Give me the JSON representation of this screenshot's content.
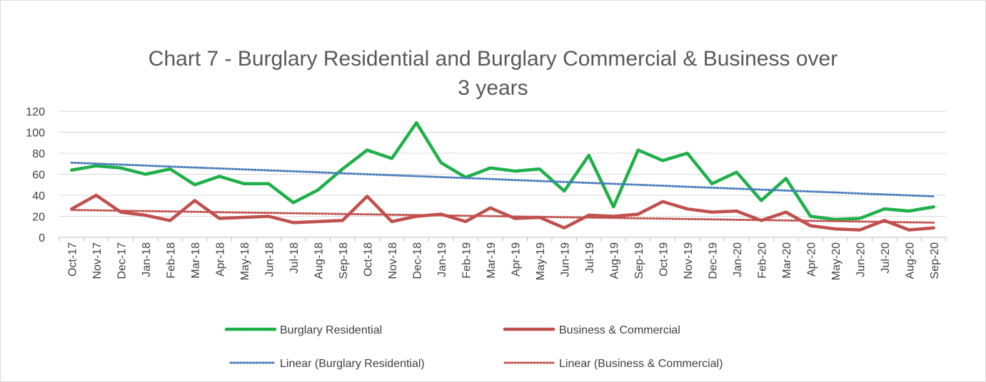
{
  "chart_data": {
    "type": "line",
    "title": "Chart 7 - Burglary Residential and Burglary Commercial & Business over\n3 years",
    "categories": [
      "Oct-17",
      "Nov-17",
      "Dec-17",
      "Jan-18",
      "Feb-18",
      "Mar-18",
      "Apr-18",
      "May-18",
      "Jun-18",
      "Jul-18",
      "Aug-18",
      "Sep-18",
      "Oct-18",
      "Nov-18",
      "Dec-18",
      "Jan-19",
      "Feb-19",
      "Mar-19",
      "Apr-19",
      "May-19",
      "Jun-19",
      "Jul-19",
      "Aug-19",
      "Sep-19",
      "Oct-19",
      "Nov-19",
      "Dec-19",
      "Jan-20",
      "Feb-20",
      "Mar-20",
      "Apr-20",
      "May-20",
      "Jun-20",
      "Jul-20",
      "Aug-20",
      "Sep-20"
    ],
    "series": [
      {
        "name": "Burglary Residential",
        "color": "#1fb04a",
        "style": "solid",
        "values": [
          64,
          68,
          66,
          60,
          65,
          50,
          58,
          51,
          51,
          33,
          45,
          65,
          83,
          75,
          109,
          71,
          57,
          66,
          63,
          65,
          44,
          78,
          29,
          83,
          73,
          80,
          51,
          62,
          35,
          56,
          20,
          17,
          18,
          27,
          25,
          29
        ]
      },
      {
        "name": "Business & Commercial",
        "color": "#c0504d",
        "style": "solid",
        "values": [
          27,
          40,
          24,
          21,
          16,
          35,
          18,
          19,
          20,
          14,
          15,
          16,
          39,
          15,
          20,
          22,
          15,
          28,
          18,
          19,
          9,
          21,
          20,
          22,
          34,
          27,
          24,
          25,
          16,
          24,
          11,
          8,
          7,
          16,
          7,
          9
        ]
      },
      {
        "name": "Linear (Burglary Residential)",
        "color": "#4a7ebb",
        "style": "dotted",
        "values": [
          71,
          70.1,
          69.2,
          68.3,
          67.3,
          66.4,
          65.5,
          64.6,
          63.7,
          62.8,
          61.9,
          60.9,
          60.0,
          59.1,
          58.2,
          57.3,
          56.4,
          55.5,
          54.5,
          53.6,
          52.7,
          51.8,
          50.9,
          50.0,
          49.1,
          48.1,
          47.2,
          46.3,
          45.4,
          44.5,
          43.6,
          42.7,
          41.7,
          40.8,
          39.9,
          39.0
        ]
      },
      {
        "name": "Linear (Business & Commercial)",
        "color": "#c0504d",
        "style": "dotted",
        "values": [
          26,
          25.7,
          25.3,
          25.0,
          24.6,
          24.3,
          23.9,
          23.6,
          23.3,
          22.9,
          22.6,
          22.2,
          21.9,
          21.5,
          21.2,
          20.9,
          20.5,
          20.2,
          19.8,
          19.5,
          19.1,
          18.8,
          18.5,
          18.1,
          17.8,
          17.4,
          17.1,
          16.7,
          16.4,
          16.1,
          15.7,
          15.4,
          15.0,
          14.7,
          14.3,
          14.0
        ]
      }
    ],
    "ylim": [
      0,
      120
    ],
    "yticks": [
      0,
      20,
      40,
      60,
      80,
      100,
      120
    ],
    "grid": true,
    "legend": "bottom"
  }
}
